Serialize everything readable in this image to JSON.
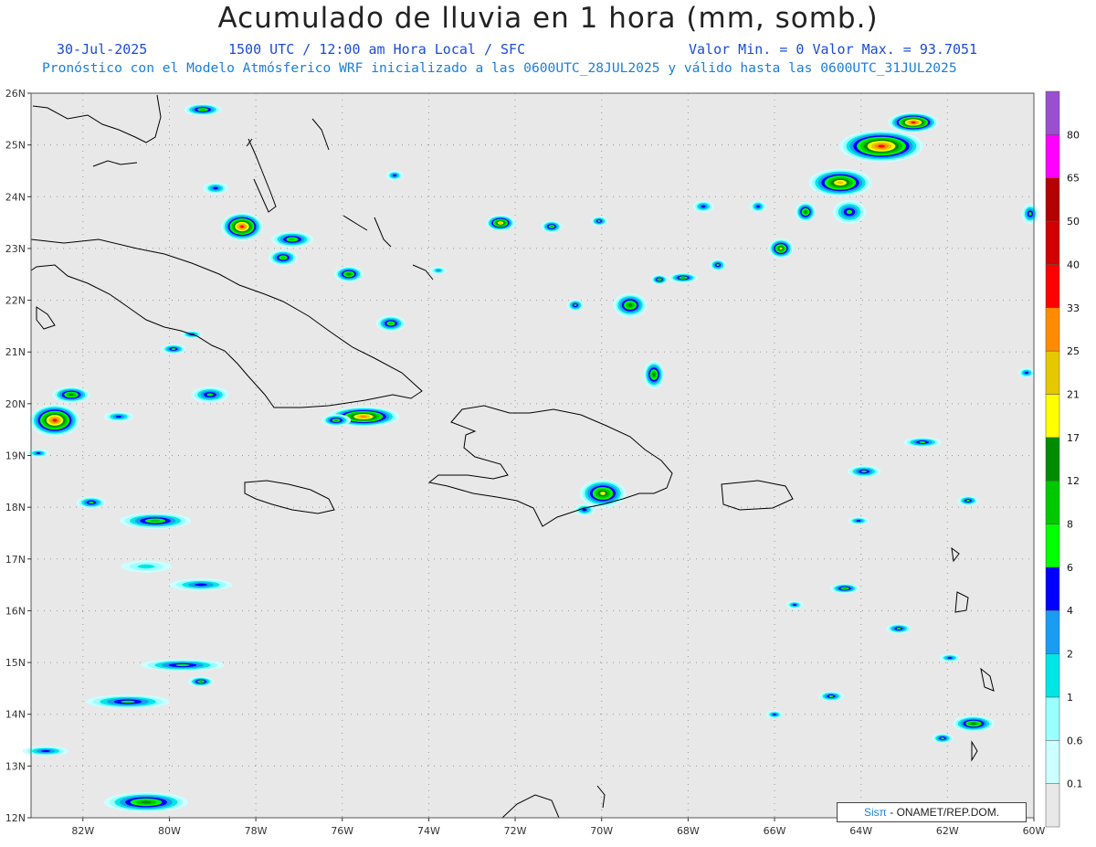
{
  "header": {
    "title": "Acumulado de lluvia en 1 hora (mm, somb.)",
    "date": "30-Jul-2025",
    "time": "1500 UTC / 12:00 am Hora Local / SFC",
    "minmax": "Valor Min. = 0  Valor Max. = 93.7051",
    "model_line": "Pronóstico con el Modelo Atmósferico WRF inicializado a las 0600UTC_28JUL2025 y válido hasta las  0600UTC_31JUL2025"
  },
  "map": {
    "lat_labels": [
      "26N",
      "25N",
      "24N",
      "23N",
      "22N",
      "21N",
      "20N",
      "19N",
      "18N",
      "17N",
      "16N",
      "15N",
      "14N",
      "13N",
      "12N"
    ],
    "lon_labels": [
      "82W",
      "80W",
      "78W",
      "76W",
      "74W",
      "72W",
      "70W",
      "68W",
      "66W",
      "64W",
      "62W",
      "60W"
    ],
    "lat_range": [
      12,
      26
    ],
    "lon_range": [
      -83.2,
      -60
    ],
    "grid": true,
    "background_color": "#e8e8e8",
    "coastline_color": "#000000"
  },
  "colorbar": {
    "levels": [
      "0.1",
      "0.6",
      "1",
      "2",
      "4",
      "6",
      "8",
      "12",
      "17",
      "21",
      "25",
      "33",
      "40",
      "50",
      "65",
      "80"
    ],
    "colors": [
      "#e8e8e8",
      "#ccffff",
      "#99ffff",
      "#00e6e6",
      "#1a9cf0",
      "#0000ff",
      "#00ff00",
      "#00c800",
      "#008c00",
      "#ffff00",
      "#e6c800",
      "#ff8c00",
      "#ff0000",
      "#d20000",
      "#b40000",
      "#ff00ff",
      "#9a4fd0"
    ]
  },
  "credit": {
    "brand": "Sisπ",
    "text": " - ONAMET/REP.DOM."
  }
}
